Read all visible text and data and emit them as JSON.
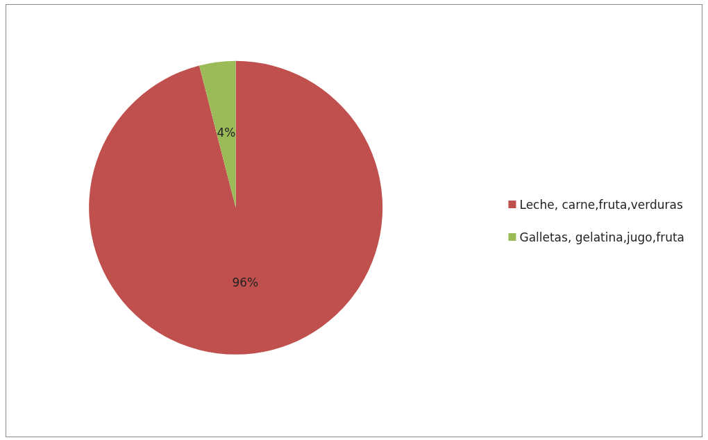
{
  "chart_data": {
    "type": "pie",
    "categories": [
      "Leche, carne,fruta,verduras",
      "Galletas, gelatina,jugo,fruta"
    ],
    "values": [
      96,
      4
    ],
    "colors": [
      "#c0504d",
      "#9bbb59"
    ],
    "value_labels": [
      "96%",
      "4%"
    ],
    "legend": "right"
  }
}
